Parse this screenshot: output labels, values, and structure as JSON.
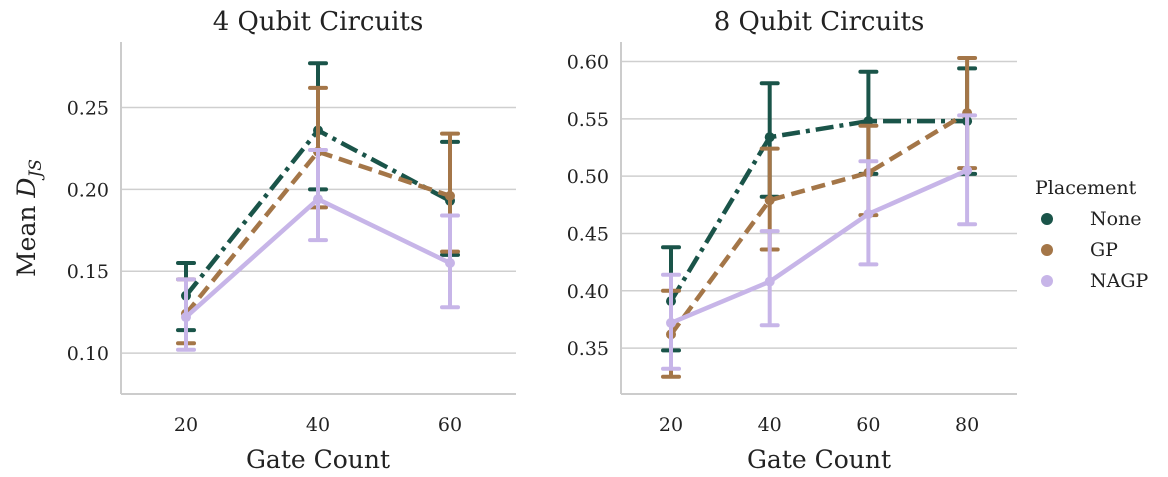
{
  "figure": {
    "ylabel_prefix": "Mean ",
    "ylabel_symbol": "D",
    "ylabel_subscript": "JS",
    "legend_title": "Placement"
  },
  "series_styles": [
    {
      "name": "None",
      "color": "#1a5449",
      "dash": "dashdot"
    },
    {
      "name": "GP",
      "color": "#a47648",
      "dash": "dashed"
    },
    {
      "name": "NAGP",
      "color": "#c7b5e8",
      "dash": "solid"
    }
  ],
  "chart_data": [
    {
      "type": "line",
      "title": "4 Qubit Circuits",
      "xlabel": "Gate Count",
      "categories": [
        "20",
        "40",
        "60"
      ],
      "ylim": [
        0.075,
        0.29
      ],
      "yticks": [
        0.1,
        0.15,
        0.2,
        0.25
      ],
      "ytick_labels": [
        "0.10",
        "0.15",
        "0.20",
        "0.25"
      ],
      "series": [
        {
          "name": "None",
          "values": [
            0.135,
            0.236,
            0.193
          ],
          "err_low": [
            0.114,
            0.2,
            0.16
          ],
          "err_high": [
            0.155,
            0.277,
            0.229
          ]
        },
        {
          "name": "GP",
          "values": [
            0.124,
            0.223,
            0.196
          ],
          "err_low": [
            0.106,
            0.189,
            0.162
          ],
          "err_high": [
            0.145,
            0.262,
            0.234
          ]
        },
        {
          "name": "NAGP",
          "values": [
            0.122,
            0.194,
            0.155
          ],
          "err_low": [
            0.102,
            0.169,
            0.128
          ],
          "err_high": [
            0.145,
            0.224,
            0.184
          ]
        }
      ]
    },
    {
      "type": "line",
      "title": "8 Qubit Circuits",
      "xlabel": "Gate Count",
      "categories": [
        "20",
        "40",
        "60",
        "80"
      ],
      "ylim": [
        0.31,
        0.617
      ],
      "yticks": [
        0.35,
        0.4,
        0.45,
        0.5,
        0.55,
        0.6
      ],
      "ytick_labels": [
        "0.35",
        "0.40",
        "0.45",
        "0.50",
        "0.55",
        "0.60"
      ],
      "series": [
        {
          "name": "None",
          "values": [
            0.391,
            0.534,
            0.548,
            0.548
          ],
          "err_low": [
            0.348,
            0.482,
            0.502,
            0.502
          ],
          "err_high": [
            0.438,
            0.581,
            0.591,
            0.594
          ]
        },
        {
          "name": "GP",
          "values": [
            0.362,
            0.479,
            0.503,
            0.555
          ],
          "err_low": [
            0.325,
            0.436,
            0.466,
            0.507
          ],
          "err_high": [
            0.4,
            0.524,
            0.544,
            0.603
          ]
        },
        {
          "name": "NAGP",
          "values": [
            0.372,
            0.408,
            0.467,
            0.505
          ],
          "err_low": [
            0.332,
            0.37,
            0.423,
            0.458
          ],
          "err_high": [
            0.414,
            0.452,
            0.513,
            0.553
          ]
        }
      ]
    }
  ]
}
